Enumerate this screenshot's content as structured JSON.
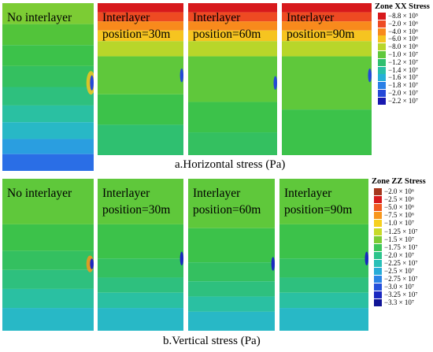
{
  "captions": {
    "top": "a.Horizontal stress (Pa)",
    "bottom": "b.Vertical stress (Pa)"
  },
  "panel_labels": {
    "no_interlayer": "No interlayer",
    "pos30": "Interlayer\nposition=30m",
    "pos60": "Interlayer\nposition=60m",
    "pos90": "Interlayer\nposition=90m"
  },
  "legend_xx": {
    "title": "Zone XX Stress",
    "entries": [
      {
        "label": "−8.8 × 10⁵",
        "color": "#d7191c"
      },
      {
        "label": "−2.0 × 10⁶",
        "color": "#ee4a22"
      },
      {
        "label": "−4.0 × 10⁶",
        "color": "#f88a1c"
      },
      {
        "label": "−6.0 × 10⁶",
        "color": "#f6c420"
      },
      {
        "label": "−8.0 × 10⁶",
        "color": "#b8d62a"
      },
      {
        "label": "−1.0 × 10⁷",
        "color": "#5fc83b"
      },
      {
        "label": "−1.2 × 10⁷",
        "color": "#2fc070"
      },
      {
        "label": "−1.4 × 10⁷",
        "color": "#2ac0a8"
      },
      {
        "label": "−1.6 × 10⁷",
        "color": "#27b0d8"
      },
      {
        "label": "−1.8 × 10⁷",
        "color": "#2a7fe6"
      },
      {
        "label": "−2.0 × 10⁷",
        "color": "#2448d8"
      },
      {
        "label": "−2.2 × 10⁷",
        "color": "#1818b0"
      }
    ]
  },
  "legend_zz": {
    "title": "Zone ZZ Stress",
    "entries": [
      {
        "label": "−2.0 × 10⁶",
        "color": "#a5371e"
      },
      {
        "label": "−2.5 × 10⁶",
        "color": "#d7191c"
      },
      {
        "label": "−5.0 × 10⁶",
        "color": "#f05a22"
      },
      {
        "label": "−7.5 × 10⁶",
        "color": "#f8961c"
      },
      {
        "label": "−1.0 × 10⁷",
        "color": "#f6d020"
      },
      {
        "label": "−1.25 × 10⁷",
        "color": "#c8da28"
      },
      {
        "label": "−1.5 × 10⁷",
        "color": "#7ccc34"
      },
      {
        "label": "−1.75 × 10⁷",
        "color": "#3cc65a"
      },
      {
        "label": "−2.0 × 10⁷",
        "color": "#2cc48c"
      },
      {
        "label": "−2.25 × 10⁷",
        "color": "#2ac0b8"
      },
      {
        "label": "−2.5 × 10⁷",
        "color": "#28acd8"
      },
      {
        "label": "−2.75 × 10⁷",
        "color": "#2a84e6"
      },
      {
        "label": "−3.0 × 10⁷",
        "color": "#2450da"
      },
      {
        "label": "−3.25 × 10⁷",
        "color": "#1a28c0"
      },
      {
        "label": "−3.3 × 10⁷",
        "color": "#101496"
      }
    ]
  }
}
